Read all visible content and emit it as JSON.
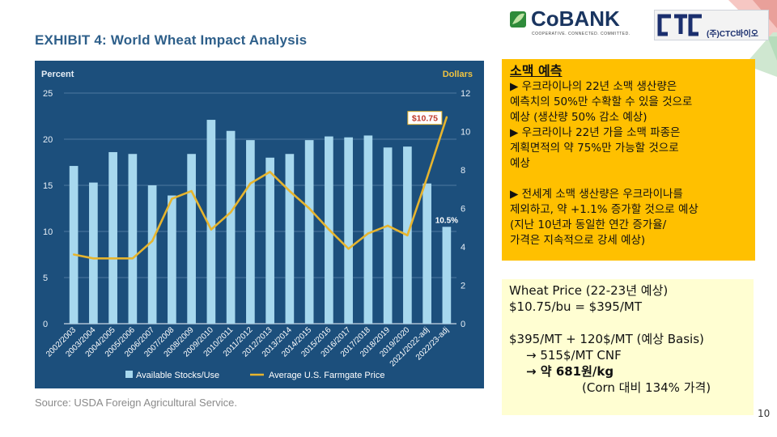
{
  "header": {
    "exhibit_title": "EXHIBIT 4: World Wheat Impact Analysis",
    "logos": {
      "cobank_name": "CoBANK",
      "cobank_tagline": "COOPERATIVE. CONNECTED. COMMITTED.",
      "ctc_name": "(주)CTC바이오"
    }
  },
  "chart_data": {
    "type": "bar",
    "title": "EXHIBIT 4: World Wheat Impact Analysis",
    "categories": [
      "2002/2003",
      "2003/2004",
      "2004/2005",
      "2005/2006",
      "2006/2007",
      "2007/2008",
      "2008/2009",
      "2009/2010",
      "2010/2011",
      "2011/2012",
      "2012/2013",
      "2013/2014",
      "2014/2015",
      "2015/2016",
      "2016/2017",
      "2017/2018",
      "2018/2019",
      "2019/2020",
      "2021/2022-adj",
      "2022/23-adj"
    ],
    "series": [
      {
        "name": "Available Stocks/Use",
        "type": "bar",
        "axis": "left",
        "color": "#a7d8ee",
        "values": [
          17.1,
          15.3,
          18.6,
          18.4,
          15.0,
          13.9,
          18.4,
          22.1,
          20.9,
          19.9,
          18.0,
          18.4,
          19.9,
          20.3,
          20.2,
          20.4,
          19.1,
          19.2,
          15.2,
          10.5
        ]
      },
      {
        "name": "Average U.S. Farmgate Price",
        "type": "line",
        "axis": "right",
        "color": "#e7b52e",
        "values": [
          3.6,
          3.4,
          3.4,
          3.4,
          4.3,
          6.5,
          6.9,
          4.9,
          5.8,
          7.3,
          7.9,
          6.9,
          6.0,
          4.9,
          3.9,
          4.7,
          5.1,
          4.6,
          7.6,
          10.75
        ]
      }
    ],
    "y_left": {
      "label": "Percent",
      "range": [
        0,
        25
      ],
      "ticks": [
        0,
        5,
        10,
        15,
        20,
        25
      ]
    },
    "y_right": {
      "label": "Dollars",
      "range": [
        0,
        12
      ],
      "ticks": [
        0,
        2,
        4,
        6,
        8,
        10,
        12
      ]
    },
    "annotations": {
      "price_label": "$10.75",
      "stocks_label": "10.5%"
    },
    "legend": {
      "position": "bottom",
      "bar_label": "Available Stocks/Use",
      "line_label": "Average U.S. Farmgate Price"
    },
    "grid": true
  },
  "source_note": "Source: USDA Foreign Agricultural Service.",
  "forecast": {
    "title": "소맥 예측",
    "lines": [
      "▶ 우크라이나의 22년 소맥 생산량은",
      "예측치의 50%만 수확할 수 있을 것으로",
      "예상 (생산량 50% 감소 예상)",
      "▶ 우크라이나 22년 가을 소맥 파종은",
      "계획면적의 약 75%만 가능할 것으로",
      "예상",
      "▶ 전세계 소맥 생산량은 우크라이나를",
      "제외하고, 약 +1.1% 증가할 것으로 예상",
      "(지난 10년과 동일한 연간 증가율/",
      "가격은 지속적으로 강세 예상)"
    ]
  },
  "price_box": {
    "line1": "Wheat Price (22-23년 예상)",
    "line2": "$10.75/bu  = $395/MT",
    "line3": "$395/MT + 120$/MT (예상 Basis)",
    "line4": "→ 515$/MT CNF",
    "line5": "→ 약 681원/kg",
    "line6": "(Corn 대비 134% 가격)"
  },
  "page_number": "10",
  "colors": {
    "chart_bg": "#1c4f7c",
    "bar": "#a7d8ee",
    "line": "#e7b52e",
    "title": "#2e5f8a",
    "forecast_bg": "#ffc000",
    "price_bg": "#fffed2"
  }
}
